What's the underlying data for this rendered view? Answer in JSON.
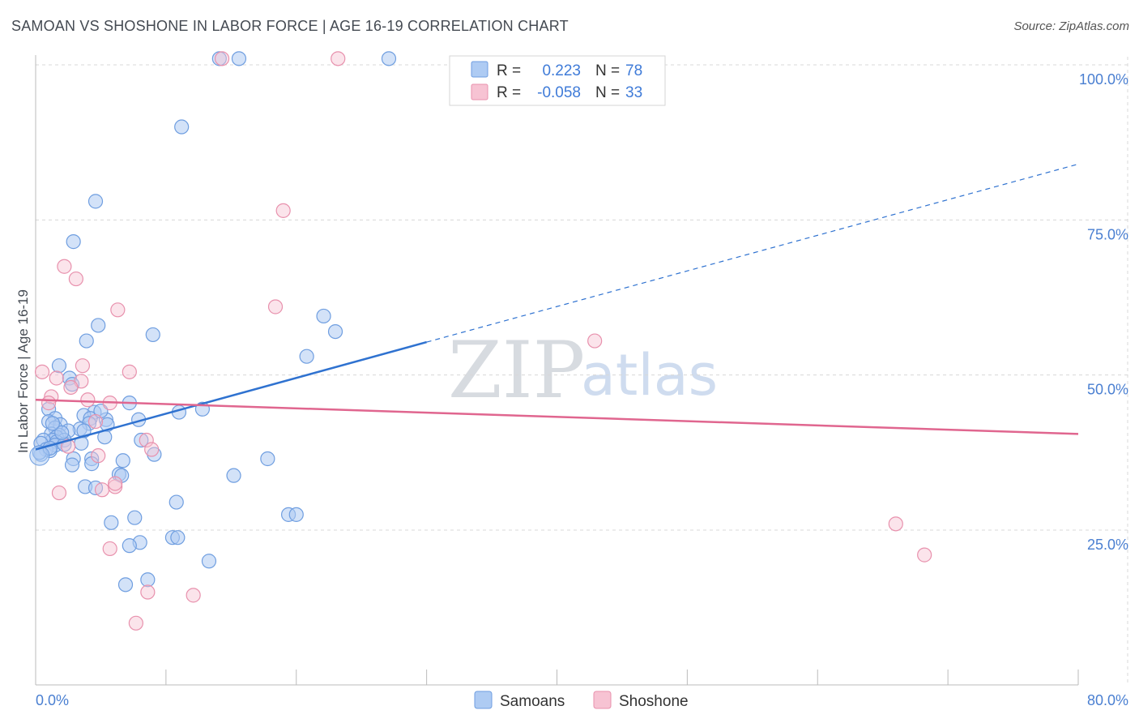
{
  "title": "SAMOAN VS SHOSHONE IN LABOR FORCE | AGE 16-19 CORRELATION CHART",
  "source": "Source: ZipAtlas.com",
  "colors": {
    "samoan_fill": "#aecbf3",
    "samoan_stroke": "#6f9ee0",
    "samoan_line": "#2f72d0",
    "shoshone_fill": "#f7c3d3",
    "shoshone_stroke": "#e891ad",
    "shoshone_line": "#e0668f",
    "grid": "#d8d8d8",
    "tick_text": "#4a7fd1"
  },
  "legend": {
    "rows": [
      {
        "r_label": "R =",
        "r_value": "0.223",
        "n_label": "N =",
        "n_value": "78"
      },
      {
        "r_label": "R =",
        "r_value": "-0.058",
        "n_label": "N =",
        "n_value": "33"
      }
    ]
  },
  "bottom_legend": [
    "Samoans",
    "Shoshone"
  ],
  "watermark": {
    "zip": "ZIP",
    "atlas": "atlas"
  },
  "chart_data": {
    "type": "scatter",
    "xlabel": "",
    "ylabel": "In Labor Force | Age 16-19",
    "xlim": [
      0,
      80
    ],
    "ylim": [
      0,
      103
    ],
    "x_tick_labels": [
      "0.0%",
      "80.0%"
    ],
    "y_ticks": [
      25,
      50,
      75,
      100
    ],
    "y_tick_labels": [
      "25.0%",
      "50.0%",
      "75.0%",
      "100.0%"
    ],
    "series": [
      {
        "name": "Samoans",
        "R": 0.223,
        "N": 78,
        "trend": {
          "x0": 0,
          "y0": 38.0,
          "x1": 30,
          "y1": 55.3,
          "x_dash_end": 80,
          "y_dash_end": 84.0
        },
        "points": [
          [
            14.1,
            101
          ],
          [
            15.6,
            101
          ],
          [
            27.1,
            101
          ],
          [
            11.2,
            90
          ],
          [
            4.6,
            78
          ],
          [
            2.9,
            71.5
          ],
          [
            4.8,
            58
          ],
          [
            9.0,
            56.5
          ],
          [
            22.1,
            59.5
          ],
          [
            23.0,
            57
          ],
          [
            3.9,
            55.5
          ],
          [
            20.8,
            53
          ],
          [
            1.8,
            51.5
          ],
          [
            2.6,
            49.5
          ],
          [
            2.8,
            48.5
          ],
          [
            4.5,
            44
          ],
          [
            7.2,
            45.5
          ],
          [
            1.0,
            44.5
          ],
          [
            11.0,
            44
          ],
          [
            12.8,
            44.5
          ],
          [
            1.5,
            43
          ],
          [
            3.7,
            43.5
          ],
          [
            4.2,
            43
          ],
          [
            5.4,
            42.8
          ],
          [
            4.1,
            42.2
          ],
          [
            5.5,
            42.0
          ],
          [
            7.9,
            42.8
          ],
          [
            1.0,
            42.5
          ],
          [
            1.9,
            42
          ],
          [
            1.5,
            41.5
          ],
          [
            3.4,
            41.3
          ],
          [
            2.5,
            41
          ],
          [
            3.7,
            41
          ],
          [
            1.8,
            40.3
          ],
          [
            1.2,
            40.5
          ],
          [
            1.6,
            40
          ],
          [
            1.3,
            39.5
          ],
          [
            2.2,
            39.5
          ],
          [
            0.6,
            39.5
          ],
          [
            0.4,
            39
          ],
          [
            3.5,
            39
          ],
          [
            1.6,
            39.2
          ],
          [
            1.5,
            38.7
          ],
          [
            8.1,
            39.5
          ],
          [
            0.8,
            38
          ],
          [
            1.1,
            37.8
          ],
          [
            0.4,
            37.2
          ],
          [
            2.2,
            38.8
          ],
          [
            9.1,
            37.2
          ],
          [
            2.9,
            36.5
          ],
          [
            4.3,
            36.5
          ],
          [
            6.7,
            36.2
          ],
          [
            2.8,
            35.5
          ],
          [
            4.3,
            35.7
          ],
          [
            6.4,
            34
          ],
          [
            6.6,
            33.8
          ],
          [
            15.2,
            33.8
          ],
          [
            17.8,
            36.5
          ],
          [
            3.8,
            32
          ],
          [
            4.6,
            31.8
          ],
          [
            10.8,
            29.5
          ],
          [
            19.4,
            27.5
          ],
          [
            20.0,
            27.5
          ],
          [
            7.6,
            27
          ],
          [
            5.8,
            26.2
          ],
          [
            8.0,
            23
          ],
          [
            7.2,
            22.5
          ],
          [
            10.5,
            23.8
          ],
          [
            10.9,
            23.8
          ],
          [
            13.3,
            20
          ],
          [
            8.6,
            17
          ],
          [
            6.9,
            16.2
          ],
          [
            0.3,
            37.5
          ],
          [
            1.1,
            38.2
          ],
          [
            2.0,
            40.7
          ],
          [
            5.0,
            44.2
          ],
          [
            1.3,
            42.2
          ],
          [
            5.3,
            40.0
          ]
        ]
      },
      {
        "name": "Shoshone",
        "R": -0.058,
        "N": 33,
        "trend": {
          "x0": 0,
          "y0": 46.0,
          "x1": 80,
          "y1": 40.5
        },
        "points": [
          [
            14.3,
            101
          ],
          [
            23.2,
            101
          ],
          [
            19.0,
            76.5
          ],
          [
            2.2,
            67.5
          ],
          [
            3.1,
            65.5
          ],
          [
            6.3,
            60.5
          ],
          [
            18.4,
            61
          ],
          [
            42.9,
            55.5
          ],
          [
            0.5,
            50.5
          ],
          [
            3.6,
            51.5
          ],
          [
            7.2,
            50.5
          ],
          [
            1.6,
            49.5
          ],
          [
            3.5,
            49
          ],
          [
            2.7,
            48
          ],
          [
            1.2,
            46.5
          ],
          [
            1.0,
            45.5
          ],
          [
            4.0,
            46
          ],
          [
            5.7,
            45.5
          ],
          [
            4.6,
            42.5
          ],
          [
            8.5,
            39.5
          ],
          [
            8.9,
            38
          ],
          [
            2.5,
            38.5
          ],
          [
            4.8,
            37
          ],
          [
            1.8,
            31
          ],
          [
            5.1,
            31.5
          ],
          [
            6.1,
            32
          ],
          [
            6.1,
            32.5
          ],
          [
            5.7,
            22
          ],
          [
            66.0,
            26
          ],
          [
            68.2,
            21
          ],
          [
            12.1,
            14.5
          ],
          [
            8.6,
            15
          ],
          [
            7.7,
            10
          ]
        ]
      }
    ]
  }
}
